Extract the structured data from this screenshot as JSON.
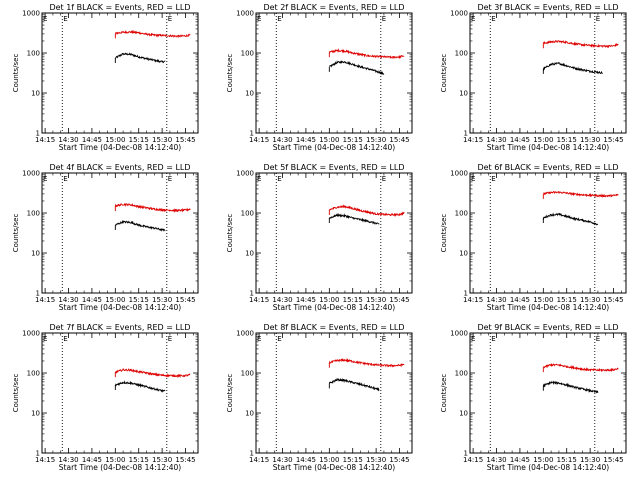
{
  "chart_data": [
    {
      "type": "line",
      "title": "Det 1f BLACK = Events, RED = LLD",
      "xlabel": "Start Time (04-Dec-08 14:12:40)",
      "ylabel": "Counts/sec",
      "yscale": "log",
      "ylim": [
        1,
        1000
      ],
      "xlim": [
        "14:13",
        "15:53"
      ],
      "x_ticks": [
        "14:15",
        "14:30",
        "14:45",
        "15:00",
        "15:15",
        "15:30",
        "15:45"
      ],
      "y_ticks": [
        "1",
        "10",
        "100",
        "1000"
      ],
      "vlines": [
        "14:26",
        "15:33"
      ],
      "vline_label": "E",
      "series": [
        {
          "color": "#000000",
          "x": [
            "15:00",
            "15:05",
            "15:10",
            "15:15",
            "15:20",
            "15:25",
            "15:30",
            "15:32"
          ],
          "values": [
            75,
            95,
            92,
            80,
            72,
            66,
            60,
            62
          ]
        },
        {
          "color": "#dd0000",
          "x": [
            "15:00",
            "15:05",
            "15:10",
            "15:15",
            "15:20",
            "15:25",
            "15:30",
            "15:35",
            "15:40",
            "15:45",
            "15:48"
          ],
          "values": [
            310,
            330,
            335,
            320,
            295,
            280,
            275,
            270,
            262,
            268,
            280
          ]
        }
      ]
    },
    {
      "type": "line",
      "title": "Det 2f BLACK = Events, RED = LLD",
      "xlabel": "Start Time (04-Dec-08 14:12:40)",
      "ylabel": "Counts/sec",
      "yscale": "log",
      "ylim": [
        1,
        1000
      ],
      "xlim": [
        "14:13",
        "15:53"
      ],
      "x_ticks": [
        "14:15",
        "14:30",
        "14:45",
        "15:00",
        "15:15",
        "15:30",
        "15:45"
      ],
      "y_ticks": [
        "1",
        "10",
        "100",
        "1000"
      ],
      "vlines": [
        "14:26",
        "15:33"
      ],
      "vline_label": "E",
      "series": [
        {
          "color": "#000000",
          "x": [
            "15:00",
            "15:05",
            "15:10",
            "15:15",
            "15:20",
            "15:25",
            "15:30",
            "15:35"
          ],
          "values": [
            45,
            58,
            60,
            52,
            45,
            40,
            35,
            30
          ]
        },
        {
          "color": "#dd0000",
          "x": [
            "15:00",
            "15:05",
            "15:10",
            "15:15",
            "15:20",
            "15:25",
            "15:30",
            "15:35",
            "15:40",
            "15:45",
            "15:48"
          ],
          "values": [
            105,
            115,
            112,
            100,
            92,
            85,
            82,
            80,
            78,
            80,
            85
          ]
        }
      ]
    },
    {
      "type": "line",
      "title": "Det 3f BLACK = Events, RED = LLD",
      "xlabel": "Start Time (04-Dec-08 14:12:40)",
      "ylabel": "Counts/sec",
      "yscale": "log",
      "ylim": [
        1,
        1000
      ],
      "xlim": [
        "14:13",
        "15:53"
      ],
      "x_ticks": [
        "14:15",
        "14:30",
        "14:45",
        "15:00",
        "15:15",
        "15:30",
        "15:45"
      ],
      "y_ticks": [
        "1",
        "10",
        "100",
        "1000"
      ],
      "vlines": [
        "14:26",
        "15:33"
      ],
      "vline_label": "E",
      "series": [
        {
          "color": "#000000",
          "x": [
            "15:00",
            "15:05",
            "15:10",
            "15:15",
            "15:20",
            "15:25",
            "15:30",
            "15:35",
            "15:38"
          ],
          "values": [
            40,
            52,
            55,
            48,
            42,
            38,
            35,
            33,
            32
          ]
        },
        {
          "color": "#dd0000",
          "x": [
            "15:00",
            "15:05",
            "15:10",
            "15:15",
            "15:20",
            "15:25",
            "15:30",
            "15:35",
            "15:40",
            "15:45",
            "15:48"
          ],
          "values": [
            175,
            190,
            195,
            185,
            170,
            160,
            155,
            150,
            148,
            150,
            165
          ]
        }
      ]
    },
    {
      "type": "line",
      "title": "Det 4f BLACK = Events, RED = LLD",
      "xlabel": "Start Time (04-Dec-08 14:12:40)",
      "ylabel": "Counts/sec",
      "yscale": "log",
      "ylim": [
        1,
        1000
      ],
      "xlim": [
        "14:13",
        "15:53"
      ],
      "x_ticks": [
        "14:15",
        "14:30",
        "14:45",
        "15:00",
        "15:15",
        "15:30",
        "15:45"
      ],
      "y_ticks": [
        "1",
        "10",
        "100",
        "1000"
      ],
      "vlines": [
        "14:26",
        "15:33"
      ],
      "vline_label": "E",
      "series": [
        {
          "color": "#000000",
          "x": [
            "15:00",
            "15:05",
            "15:10",
            "15:15",
            "15:20",
            "15:25",
            "15:30",
            "15:32"
          ],
          "values": [
            50,
            60,
            58,
            50,
            45,
            42,
            38,
            37
          ]
        },
        {
          "color": "#dd0000",
          "x": [
            "15:00",
            "15:05",
            "15:10",
            "15:15",
            "15:20",
            "15:25",
            "15:30",
            "15:35",
            "15:40",
            "15:45",
            "15:48"
          ],
          "values": [
            150,
            165,
            160,
            145,
            135,
            125,
            120,
            118,
            115,
            118,
            125
          ]
        }
      ]
    },
    {
      "type": "line",
      "title": "Det 5f BLACK = Events, RED = LLD",
      "xlabel": "Start Time (04-Dec-08 14:12:40)",
      "ylabel": "Counts/sec",
      "yscale": "log",
      "ylim": [
        1,
        1000
      ],
      "xlim": [
        "14:13",
        "15:53"
      ],
      "x_ticks": [
        "14:15",
        "14:30",
        "14:45",
        "15:00",
        "15:15",
        "15:30",
        "15:45"
      ],
      "y_ticks": [
        "1",
        "10",
        "100",
        "1000"
      ],
      "vlines": [
        "14:26",
        "15:33"
      ],
      "vline_label": "E",
      "series": [
        {
          "color": "#000000",
          "x": [
            "15:00",
            "15:05",
            "15:10",
            "15:15",
            "15:20",
            "15:25",
            "15:30",
            "15:32"
          ],
          "values": [
            75,
            88,
            85,
            75,
            68,
            62,
            55,
            52
          ]
        },
        {
          "color": "#dd0000",
          "x": [
            "15:00",
            "15:05",
            "15:10",
            "15:15",
            "15:20",
            "15:25",
            "15:30",
            "15:35",
            "15:40",
            "15:45",
            "15:48"
          ],
          "values": [
            120,
            140,
            145,
            130,
            115,
            105,
            95,
            92,
            90,
            92,
            100
          ]
        }
      ]
    },
    {
      "type": "line",
      "title": "Det 6f BLACK = Events, RED = LLD",
      "xlabel": "Start Time (04-Dec-08 14:12:40)",
      "ylabel": "Counts/sec",
      "yscale": "log",
      "ylim": [
        1,
        1000
      ],
      "xlim": [
        "14:13",
        "15:53"
      ],
      "x_ticks": [
        "14:15",
        "14:30",
        "14:45",
        "15:00",
        "15:15",
        "15:30",
        "15:45"
      ],
      "y_ticks": [
        "1",
        "10",
        "100",
        "1000"
      ],
      "vlines": [
        "14:26",
        "15:33"
      ],
      "vline_label": "E",
      "series": [
        {
          "color": "#000000",
          "x": [
            "15:00",
            "15:05",
            "15:10",
            "15:15",
            "15:20",
            "15:25",
            "15:30",
            "15:35"
          ],
          "values": [
            75,
            90,
            92,
            82,
            72,
            66,
            60,
            52
          ]
        },
        {
          "color": "#dd0000",
          "x": [
            "15:00",
            "15:05",
            "15:10",
            "15:15",
            "15:20",
            "15:25",
            "15:30",
            "15:35",
            "15:40",
            "15:45",
            "15:48"
          ],
          "values": [
            300,
            325,
            330,
            315,
            295,
            285,
            278,
            272,
            268,
            272,
            285
          ]
        }
      ]
    },
    {
      "type": "line",
      "title": "Det 7f BLACK = Events, RED = LLD",
      "xlabel": "Start Time (04-Dec-08 14:12:40)",
      "ylabel": "Counts/sec",
      "yscale": "log",
      "ylim": [
        1,
        1000
      ],
      "xlim": [
        "14:13",
        "15:53"
      ],
      "x_ticks": [
        "14:15",
        "14:30",
        "14:45",
        "15:00",
        "15:15",
        "15:30",
        "15:45"
      ],
      "y_ticks": [
        "1",
        "10",
        "100",
        "1000"
      ],
      "vlines": [
        "14:26",
        "15:33"
      ],
      "vline_label": "E",
      "series": [
        {
          "color": "#000000",
          "x": [
            "15:00",
            "15:05",
            "15:10",
            "15:15",
            "15:20",
            "15:25",
            "15:30",
            "15:32"
          ],
          "values": [
            50,
            58,
            56,
            50,
            45,
            40,
            36,
            35
          ]
        },
        {
          "color": "#dd0000",
          "x": [
            "15:00",
            "15:05",
            "15:10",
            "15:15",
            "15:20",
            "15:25",
            "15:30",
            "15:35",
            "15:40",
            "15:45",
            "15:48"
          ],
          "values": [
            105,
            120,
            118,
            108,
            100,
            92,
            88,
            86,
            85,
            86,
            90
          ]
        }
      ]
    },
    {
      "type": "line",
      "title": "Det 8f BLACK = Events, RED = LLD",
      "xlabel": "Start Time (04-Dec-08 14:12:40)",
      "ylabel": "Counts/sec",
      "yscale": "log",
      "ylim": [
        1,
        1000
      ],
      "xlim": [
        "14:13",
        "15:53"
      ],
      "x_ticks": [
        "14:15",
        "14:30",
        "14:45",
        "15:00",
        "15:15",
        "15:30",
        "15:45"
      ],
      "y_ticks": [
        "1",
        "10",
        "100",
        "1000"
      ],
      "vlines": [
        "14:26",
        "15:33"
      ],
      "vline_label": "E",
      "series": [
        {
          "color": "#000000",
          "x": [
            "15:00",
            "15:05",
            "15:10",
            "15:15",
            "15:20",
            "15:25",
            "15:30",
            "15:32"
          ],
          "values": [
            55,
            68,
            65,
            58,
            52,
            46,
            40,
            38
          ]
        },
        {
          "color": "#dd0000",
          "x": [
            "15:00",
            "15:05",
            "15:10",
            "15:15",
            "15:20",
            "15:25",
            "15:30",
            "15:35",
            "15:40",
            "15:45",
            "15:48"
          ],
          "values": [
            180,
            205,
            210,
            195,
            180,
            168,
            160,
            155,
            152,
            155,
            165
          ]
        }
      ]
    },
    {
      "type": "line",
      "title": "Det 9f BLACK = Events, RED = LLD",
      "xlabel": "Start Time (04-Dec-08 14:12:40)",
      "ylabel": "Counts/sec",
      "yscale": "log",
      "ylim": [
        1,
        1000
      ],
      "xlim": [
        "14:13",
        "15:53"
      ],
      "x_ticks": [
        "14:15",
        "14:30",
        "14:45",
        "15:00",
        "15:15",
        "15:30",
        "15:45"
      ],
      "y_ticks": [
        "1",
        "10",
        "100",
        "1000"
      ],
      "vlines": [
        "14:26",
        "15:33"
      ],
      "vline_label": "E",
      "series": [
        {
          "color": "#000000",
          "x": [
            "15:00",
            "15:05",
            "15:10",
            "15:15",
            "15:20",
            "15:25",
            "15:30",
            "15:35"
          ],
          "values": [
            48,
            58,
            56,
            50,
            44,
            40,
            36,
            33
          ]
        },
        {
          "color": "#dd0000",
          "x": [
            "15:00",
            "15:05",
            "15:10",
            "15:15",
            "15:20",
            "15:25",
            "15:30",
            "15:35",
            "15:40",
            "15:45",
            "15:48"
          ],
          "values": [
            140,
            160,
            158,
            145,
            135,
            125,
            120,
            118,
            118,
            120,
            130
          ]
        }
      ]
    }
  ]
}
